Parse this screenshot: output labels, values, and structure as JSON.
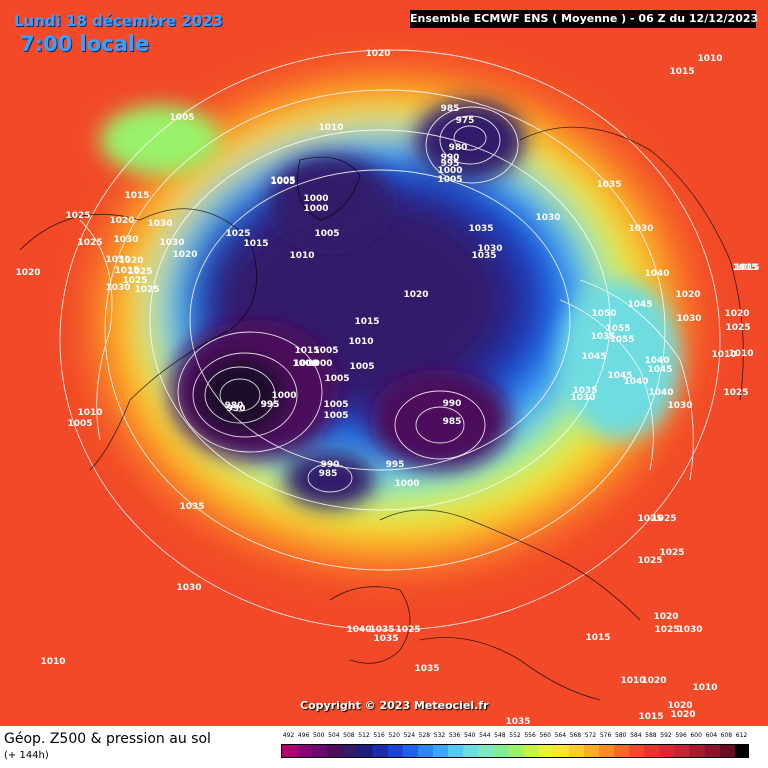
{
  "header": {
    "date": "Lundi 18 décembre 2023",
    "local_time": "7:00 locale",
    "model_run": "Ensemble ECMWF ENS  ( Moyenne )  -  06 Z du 12/12/2023"
  },
  "copyright": "Copyright © 2023 Meteociel.fr",
  "footer": {
    "parameter": "Géop. Z500 & pression au sol",
    "lead_time": "(+ 144h)"
  },
  "legend": {
    "values": [
      "492",
      "496",
      "500",
      "504",
      "508",
      "512",
      "516",
      "520",
      "524",
      "528",
      "532",
      "536",
      "540",
      "544",
      "548",
      "552",
      "556",
      "560",
      "564",
      "568",
      "572",
      "576",
      "580",
      "584",
      "588",
      "592",
      "596",
      "600",
      "604",
      "608",
      "612"
    ],
    "colors": [
      "#b00070",
      "#8a0078",
      "#6a0a6e",
      "#4c0c5c",
      "#331a6a",
      "#1b1e7c",
      "#1a2ea8",
      "#1c44d2",
      "#1f62ee",
      "#2c86f6",
      "#3ea8f8",
      "#56c8f2",
      "#6edce0",
      "#7ee8c0",
      "#80ee90",
      "#9af26a",
      "#c4f248",
      "#e8f23a",
      "#fae632",
      "#fccc2c",
      "#fcae28",
      "#fa8c26",
      "#f66a26",
      "#f24a28",
      "#e8362c",
      "#d82a30",
      "#c42434",
      "#a81c30",
      "#8a142a",
      "#6c0c22",
      "#000000"
    ]
  },
  "pressure_labels": [
    "1020",
    "1015",
    "1010",
    "1005",
    "1010",
    "1005",
    "1000",
    "985",
    "975",
    "980",
    "990",
    "995",
    "1000",
    "1005",
    "1015",
    "1020",
    "1025",
    "1030",
    "1030",
    "1030",
    "1025",
    "1030",
    "1020",
    "1015",
    "1025",
    "1025",
    "1020",
    "1015",
    "1025",
    "1020",
    "1025",
    "1030",
    "1005",
    "1000",
    "1005",
    "1000",
    "1005",
    "1010",
    "1015",
    "1020",
    "1035",
    "1030",
    "1035",
    "1030",
    "1035",
    "1030",
    "1040",
    "1045",
    "1035",
    "1050",
    "1055",
    "1055",
    "1045",
    "1010",
    "1015",
    "1020",
    "1030",
    "1020",
    "1025",
    "1010",
    "1015",
    "1045",
    "1040",
    "1045",
    "1035",
    "1040",
    "1030",
    "1040",
    "1025",
    "1030",
    "1000",
    "995",
    "990",
    "980",
    "995",
    "1000",
    "1005",
    "1005",
    "1010",
    "1005",
    "1015",
    "1005",
    "1000",
    "990",
    "985",
    "990",
    "985",
    "995",
    "1000",
    "1010",
    "1005",
    "1035",
    "1030",
    "1010",
    "1040",
    "1035",
    "1035",
    "1025",
    "1035",
    "1025",
    "1025",
    "1025",
    "1025",
    "1020",
    "1025",
    "1030",
    "1015",
    "1010",
    "1020",
    "1015",
    "1020",
    "1020",
    "1010",
    "1035"
  ]
}
